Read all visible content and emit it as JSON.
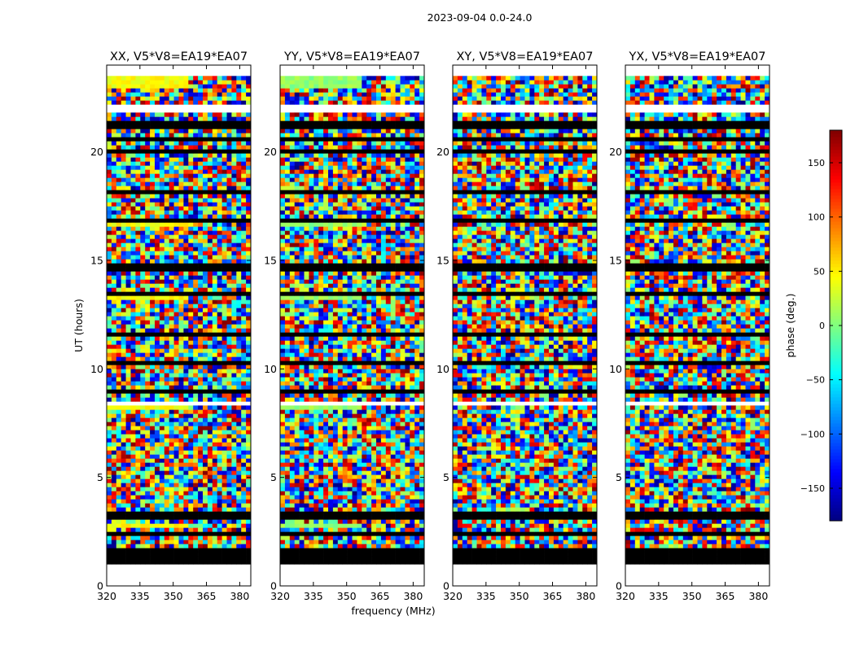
{
  "figure_title": "2023-09-04 0.0-24.0",
  "chart_data": {
    "type": "heatmap",
    "suptitle": "2023-09-04 0.0-24.0",
    "shared_xlabel": "frequency (MHz)",
    "shared_ylabel": "UT (hours)",
    "xlim": [
      320,
      385
    ],
    "ylim": [
      0,
      24
    ],
    "xticks": [
      320,
      335,
      350,
      365,
      380
    ],
    "yticks": [
      0,
      5,
      10,
      15,
      20
    ],
    "panels": [
      {
        "title": "XX, V5*V8=EA19*EA07",
        "polarization": "XX"
      },
      {
        "title": "YY, V5*V8=EA19*EA07",
        "polarization": "YY"
      },
      {
        "title": "XY, V5*V8=EA19*EA07",
        "polarization": "XY"
      },
      {
        "title": "YX, V5*V8=EA19*EA07",
        "polarization": "YX"
      }
    ],
    "colorbar": {
      "label": "phase (deg.)",
      "range": [
        -180,
        180
      ],
      "ticks": [
        -150,
        -100,
        -50,
        0,
        50,
        100,
        150
      ],
      "colormap": "jet"
    },
    "colors": {
      "axis": "#000000",
      "background": "#ffffff",
      "flagged": "#ffffff"
    }
  }
}
